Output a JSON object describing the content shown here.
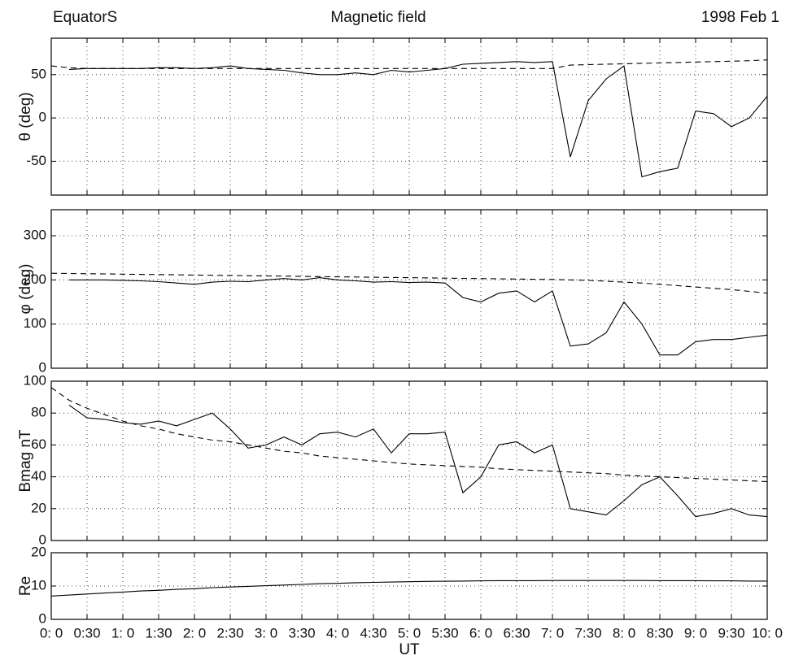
{
  "chart_data": [
    {
      "type": "line",
      "title": "Magnetic field",
      "annotations": [
        "EquatorS",
        "1998 Feb 1"
      ],
      "ylabel": "θ (deg)",
      "x": [
        0,
        0.25,
        0.5,
        0.75,
        1,
        1.25,
        1.5,
        1.75,
        2,
        2.25,
        2.5,
        2.75,
        3,
        3.25,
        3.5,
        3.75,
        4,
        4.25,
        4.5,
        4.75,
        5,
        5.25,
        5.5,
        5.75,
        6,
        6.25,
        6.5,
        6.75,
        7,
        7.25,
        7.5,
        7.75,
        8,
        8.25,
        8.5,
        8.75,
        9,
        9.25,
        9.5,
        9.75,
        10
      ],
      "series": [
        {
          "color": "#000000",
          "style": "solid",
          "values": [
            null,
            56,
            57,
            57,
            57,
            57,
            58,
            58,
            57,
            58,
            60,
            57,
            56,
            55,
            52,
            50,
            50,
            52,
            50,
            55,
            53,
            55,
            57,
            62,
            63,
            64,
            65,
            64,
            65,
            -45,
            20,
            45,
            60,
            -68,
            -62,
            -58,
            8,
            5,
            -10,
            0,
            25
          ]
        },
        {
          "color": "#000000",
          "style": "dashed",
          "values": [
            60,
            58,
            57,
            57,
            57,
            57,
            57,
            57,
            57,
            57,
            57,
            57,
            57,
            57,
            57,
            57,
            57,
            57,
            57,
            57,
            57,
            57,
            57,
            57,
            57,
            57,
            57,
            57,
            57,
            61,
            61.5,
            62,
            62.5,
            63,
            63.5,
            64,
            64.5,
            65,
            65.5,
            66,
            67
          ]
        }
      ],
      "xlim": [
        0,
        10
      ],
      "xticks": [
        0,
        0.5,
        1,
        1.5,
        2,
        2.5,
        3,
        3.5,
        4,
        4.5,
        5,
        5.5,
        6,
        6.5,
        7,
        7.5,
        8,
        8.5,
        9,
        9.5,
        10
      ],
      "ylim": [
        -89,
        92
      ],
      "yticks": [
        -50,
        0,
        50
      ],
      "grid": true
    },
    {
      "type": "line",
      "ylabel": "φ (deg)",
      "x": [
        0,
        0.25,
        0.5,
        0.75,
        1,
        1.25,
        1.5,
        1.75,
        2,
        2.25,
        2.5,
        2.75,
        3,
        3.25,
        3.5,
        3.75,
        4,
        4.25,
        4.5,
        4.75,
        5,
        5.25,
        5.5,
        5.75,
        6,
        6.25,
        6.5,
        6.75,
        7,
        7.25,
        7.5,
        7.75,
        8,
        8.25,
        8.5,
        8.75,
        9,
        9.25,
        9.5,
        9.75,
        10
      ],
      "series": [
        {
          "color": "#000000",
          "style": "solid",
          "values": [
            null,
            200,
            200,
            200,
            199,
            198,
            196,
            193,
            190,
            195,
            197,
            196,
            200,
            203,
            200,
            205,
            200,
            198,
            195,
            196,
            194,
            195,
            193,
            160,
            150,
            170,
            175,
            150,
            175,
            50,
            55,
            80,
            150,
            100,
            30,
            30,
            60,
            65,
            65,
            70,
            75
          ]
        },
        {
          "color": "#000000",
          "style": "dashed",
          "values": [
            215,
            214.5,
            214,
            213.5,
            213,
            212.5,
            212,
            211.5,
            211,
            210.5,
            210,
            209.5,
            209,
            208.5,
            208,
            207.5,
            207,
            206.5,
            206,
            205.5,
            205,
            204.5,
            204,
            203.5,
            203,
            202.5,
            202,
            201.5,
            201,
            200,
            199,
            197,
            195,
            193,
            190,
            187,
            184,
            181,
            178,
            174,
            170
          ]
        }
      ],
      "xlim": [
        0,
        10
      ],
      "xticks": [
        0,
        0.5,
        1,
        1.5,
        2,
        2.5,
        3,
        3.5,
        4,
        4.5,
        5,
        5.5,
        6,
        6.5,
        7,
        7.5,
        8,
        8.5,
        9,
        9.5,
        10
      ],
      "ylim": [
        0,
        359
      ],
      "yticks": [
        0,
        100,
        200,
        300
      ],
      "grid": true
    },
    {
      "type": "line",
      "ylabel": "Bmag nT",
      "x": [
        0,
        0.25,
        0.5,
        0.75,
        1,
        1.25,
        1.5,
        1.75,
        2,
        2.25,
        2.5,
        2.75,
        3,
        3.25,
        3.5,
        3.75,
        4,
        4.25,
        4.5,
        4.75,
        5,
        5.25,
        5.5,
        5.75,
        6,
        6.25,
        6.5,
        6.75,
        7,
        7.25,
        7.5,
        7.75,
        8,
        8.25,
        8.5,
        8.75,
        9,
        9.25,
        9.5,
        9.75,
        10
      ],
      "series": [
        {
          "color": "#000000",
          "style": "solid",
          "values": [
            null,
            85,
            77,
            76,
            74,
            73,
            75,
            72,
            76,
            80,
            70,
            58,
            60,
            65,
            60,
            67,
            68,
            65,
            70,
            55,
            67,
            67,
            68,
            30,
            40,
            60,
            62,
            55,
            60,
            20,
            18,
            16,
            25,
            35,
            40,
            28,
            15,
            17,
            20,
            16,
            15
          ]
        },
        {
          "color": "#000000",
          "style": "dashed",
          "values": [
            96,
            88,
            83,
            79,
            75,
            72,
            70,
            67,
            65,
            63,
            62,
            60,
            58,
            56,
            55,
            53,
            52,
            51,
            50,
            49,
            48,
            47.5,
            47,
            46.5,
            46,
            45,
            44.5,
            44,
            43.5,
            43,
            42.5,
            42,
            41,
            40.5,
            40,
            39.5,
            39,
            38.5,
            38,
            37.5,
            37
          ]
        }
      ],
      "xlim": [
        0,
        10
      ],
      "xticks": [
        0,
        0.5,
        1,
        1.5,
        2,
        2.5,
        3,
        3.5,
        4,
        4.5,
        5,
        5.5,
        6,
        6.5,
        7,
        7.5,
        8,
        8.5,
        9,
        9.5,
        10
      ],
      "ylim": [
        0,
        100
      ],
      "yticks": [
        0,
        20,
        40,
        60,
        80,
        100
      ],
      "grid": true
    },
    {
      "type": "line",
      "ylabel": "Re",
      "xlabel": "UT",
      "x": [
        0,
        0.25,
        0.5,
        0.75,
        1,
        1.25,
        1.5,
        1.75,
        2,
        2.25,
        2.5,
        2.75,
        3,
        3.25,
        3.5,
        3.75,
        4,
        4.25,
        4.5,
        4.75,
        5,
        5.25,
        5.5,
        5.75,
        6,
        6.25,
        6.5,
        6.75,
        7,
        7.25,
        7.5,
        7.75,
        8,
        8.25,
        8.5,
        8.75,
        9,
        9.25,
        9.5,
        9.75,
        10
      ],
      "series": [
        {
          "color": "#000000",
          "style": "solid",
          "values": [
            7,
            7.3,
            7.6,
            7.9,
            8.2,
            8.5,
            8.7,
            9,
            9.2,
            9.5,
            9.7,
            9.9,
            10.1,
            10.3,
            10.5,
            10.7,
            10.8,
            11,
            11.1,
            11.2,
            11.3,
            11.4,
            11.45,
            11.5,
            11.55,
            11.6,
            11.6,
            11.6,
            11.65,
            11.65,
            11.65,
            11.65,
            11.65,
            11.65,
            11.6,
            11.6,
            11.6,
            11.55,
            11.55,
            11.5,
            11.5
          ]
        }
      ],
      "xlim": [
        0,
        10
      ],
      "xticks": [
        {
          "value": 0,
          "label": "0: 0"
        },
        {
          "value": 0.5,
          "label": "0:30"
        },
        {
          "value": 1,
          "label": "1: 0"
        },
        {
          "value": 1.5,
          "label": "1:30"
        },
        {
          "value": 2,
          "label": "2: 0"
        },
        {
          "value": 2.5,
          "label": "2:30"
        },
        {
          "value": 3,
          "label": "3: 0"
        },
        {
          "value": 3.5,
          "label": "3:30"
        },
        {
          "value": 4,
          "label": "4: 0"
        },
        {
          "value": 4.5,
          "label": "4:30"
        },
        {
          "value": 5,
          "label": "5: 0"
        },
        {
          "value": 5.5,
          "label": "5:30"
        },
        {
          "value": 6,
          "label": "6: 0"
        },
        {
          "value": 6.5,
          "label": "6:30"
        },
        {
          "value": 7,
          "label": "7: 0"
        },
        {
          "value": 7.5,
          "label": "7:30"
        },
        {
          "value": 8,
          "label": "8: 0"
        },
        {
          "value": 8.5,
          "label": "8:30"
        },
        {
          "value": 9,
          "label": "9: 0"
        },
        {
          "value": 9.5,
          "label": "9:30"
        },
        {
          "value": 10,
          "label": "10: 0"
        }
      ],
      "ylim": [
        0,
        20
      ],
      "yticks": [
        0,
        10,
        20
      ],
      "grid": true
    }
  ]
}
